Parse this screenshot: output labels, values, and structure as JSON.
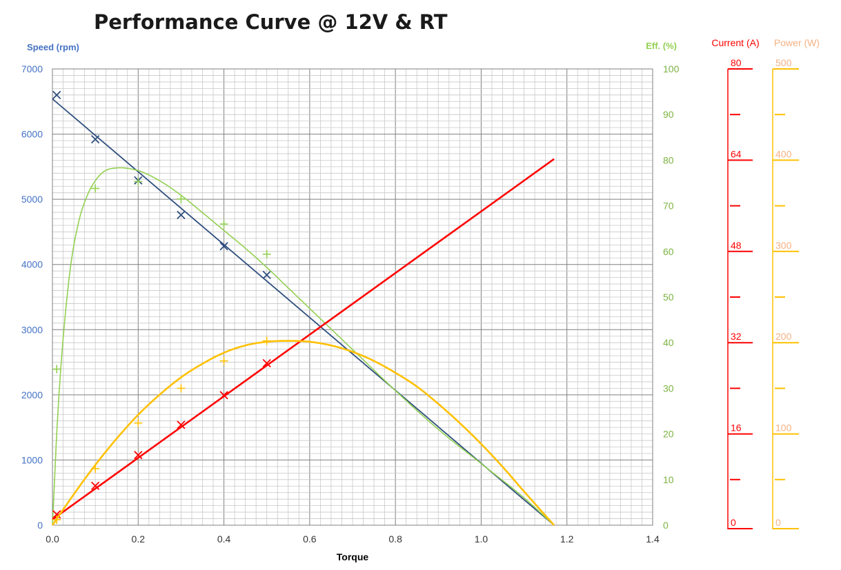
{
  "chart_data": {
    "type": "line",
    "title": "Performance Curve @ 12V & RT",
    "xlabel": "Torque",
    "xlim": [
      0,
      1.4
    ],
    "x_ticks": [
      "0.0",
      "0.2",
      "0.4",
      "0.6",
      "0.8",
      "1.0",
      "1.2",
      "1.4"
    ],
    "grid": true,
    "axes": {
      "speed": {
        "label": "Speed (rpm)",
        "range": [
          0,
          7000
        ],
        "ticks": [
          "0",
          "1000",
          "2000",
          "3000",
          "4000",
          "5000",
          "6000",
          "7000"
        ],
        "color": "#4472C4"
      },
      "efficiency": {
        "label": "Eff. (%)",
        "range": [
          0,
          100
        ],
        "ticks": [
          "0",
          "10",
          "20",
          "30",
          "40",
          "50",
          "60",
          "70",
          "80",
          "90",
          "100"
        ],
        "color": "#92D050"
      },
      "current": {
        "label": "Current (A)",
        "range": [
          0,
          80
        ],
        "ticks": [
          "0",
          "16",
          "32",
          "48",
          "64",
          "80"
        ],
        "color": "#FF0000"
      },
      "power": {
        "label": "Power (W)",
        "range": [
          0,
          500
        ],
        "ticks": [
          "0",
          "100",
          "200",
          "300",
          "400",
          "500"
        ],
        "color": "#FFC000"
      }
    },
    "series": [
      {
        "axis": "speed",
        "color": "#2E4E7E",
        "curve": {
          "x": [
            0,
            1.17
          ],
          "y": [
            6540,
            0
          ]
        },
        "markers": {
          "style": "x",
          "x": [
            0.01,
            0.1,
            0.2,
            0.3,
            0.4,
            0.5
          ],
          "y": [
            6600,
            5920,
            5290,
            4760,
            4280,
            3840
          ]
        }
      },
      {
        "axis": "efficiency",
        "color": "#92D050",
        "curve": {
          "x": [
            0,
            0.005,
            0.01,
            0.02,
            0.04,
            0.06,
            0.08,
            0.1,
            0.12,
            0.15,
            0.2,
            0.25,
            0.3,
            0.35,
            0.4,
            0.45,
            0.5,
            0.55,
            0.6,
            0.7,
            0.8,
            0.9,
            1.0,
            1.1,
            1.17
          ],
          "y": [
            0,
            10,
            20,
            35,
            55,
            66,
            72,
            75.5,
            77.5,
            78.3,
            77.7,
            75.5,
            72.3,
            68.5,
            64.6,
            60.7,
            56.5,
            52.0,
            47.5,
            38.5,
            29.5,
            21.0,
            13.5,
            6.0,
            0
          ]
        },
        "markers": {
          "style": "+",
          "x": [
            0.01,
            0.1,
            0.2,
            0.3,
            0.4,
            0.5
          ],
          "y": [
            34.2,
            73.8,
            75.3,
            71.5,
            66.0,
            59.4
          ]
        }
      },
      {
        "axis": "current",
        "color": "#FF0000",
        "curve": {
          "x": [
            0,
            1.17
          ],
          "y": [
            1.0,
            64.2
          ]
        },
        "markers": {
          "style": "x",
          "x": [
            0.01,
            0.1,
            0.2,
            0.3,
            0.4,
            0.5
          ],
          "y": [
            1.9,
            6.9,
            12.3,
            17.6,
            22.8,
            28.4
          ]
        }
      },
      {
        "axis": "power",
        "color": "#FFC000",
        "curve": {
          "x": [
            0,
            0.05,
            0.1,
            0.15,
            0.2,
            0.25,
            0.3,
            0.35,
            0.4,
            0.45,
            0.5,
            0.55,
            0.6,
            0.65,
            0.7,
            0.75,
            0.8,
            0.85,
            0.9,
            0.95,
            1.0,
            1.05,
            1.1,
            1.17
          ],
          "y": [
            0,
            34,
            66,
            95,
            121,
            143,
            162,
            177,
            189,
            197,
            201,
            202,
            201,
            197,
            190,
            180,
            167,
            152,
            133,
            112,
            89,
            64,
            37,
            0
          ]
        },
        "markers": {
          "style": "+",
          "x": [
            0.01,
            0.1,
            0.2,
            0.3,
            0.4,
            0.5
          ],
          "y": [
            6,
            62,
            112,
            150,
            180,
            202
          ]
        }
      }
    ]
  }
}
